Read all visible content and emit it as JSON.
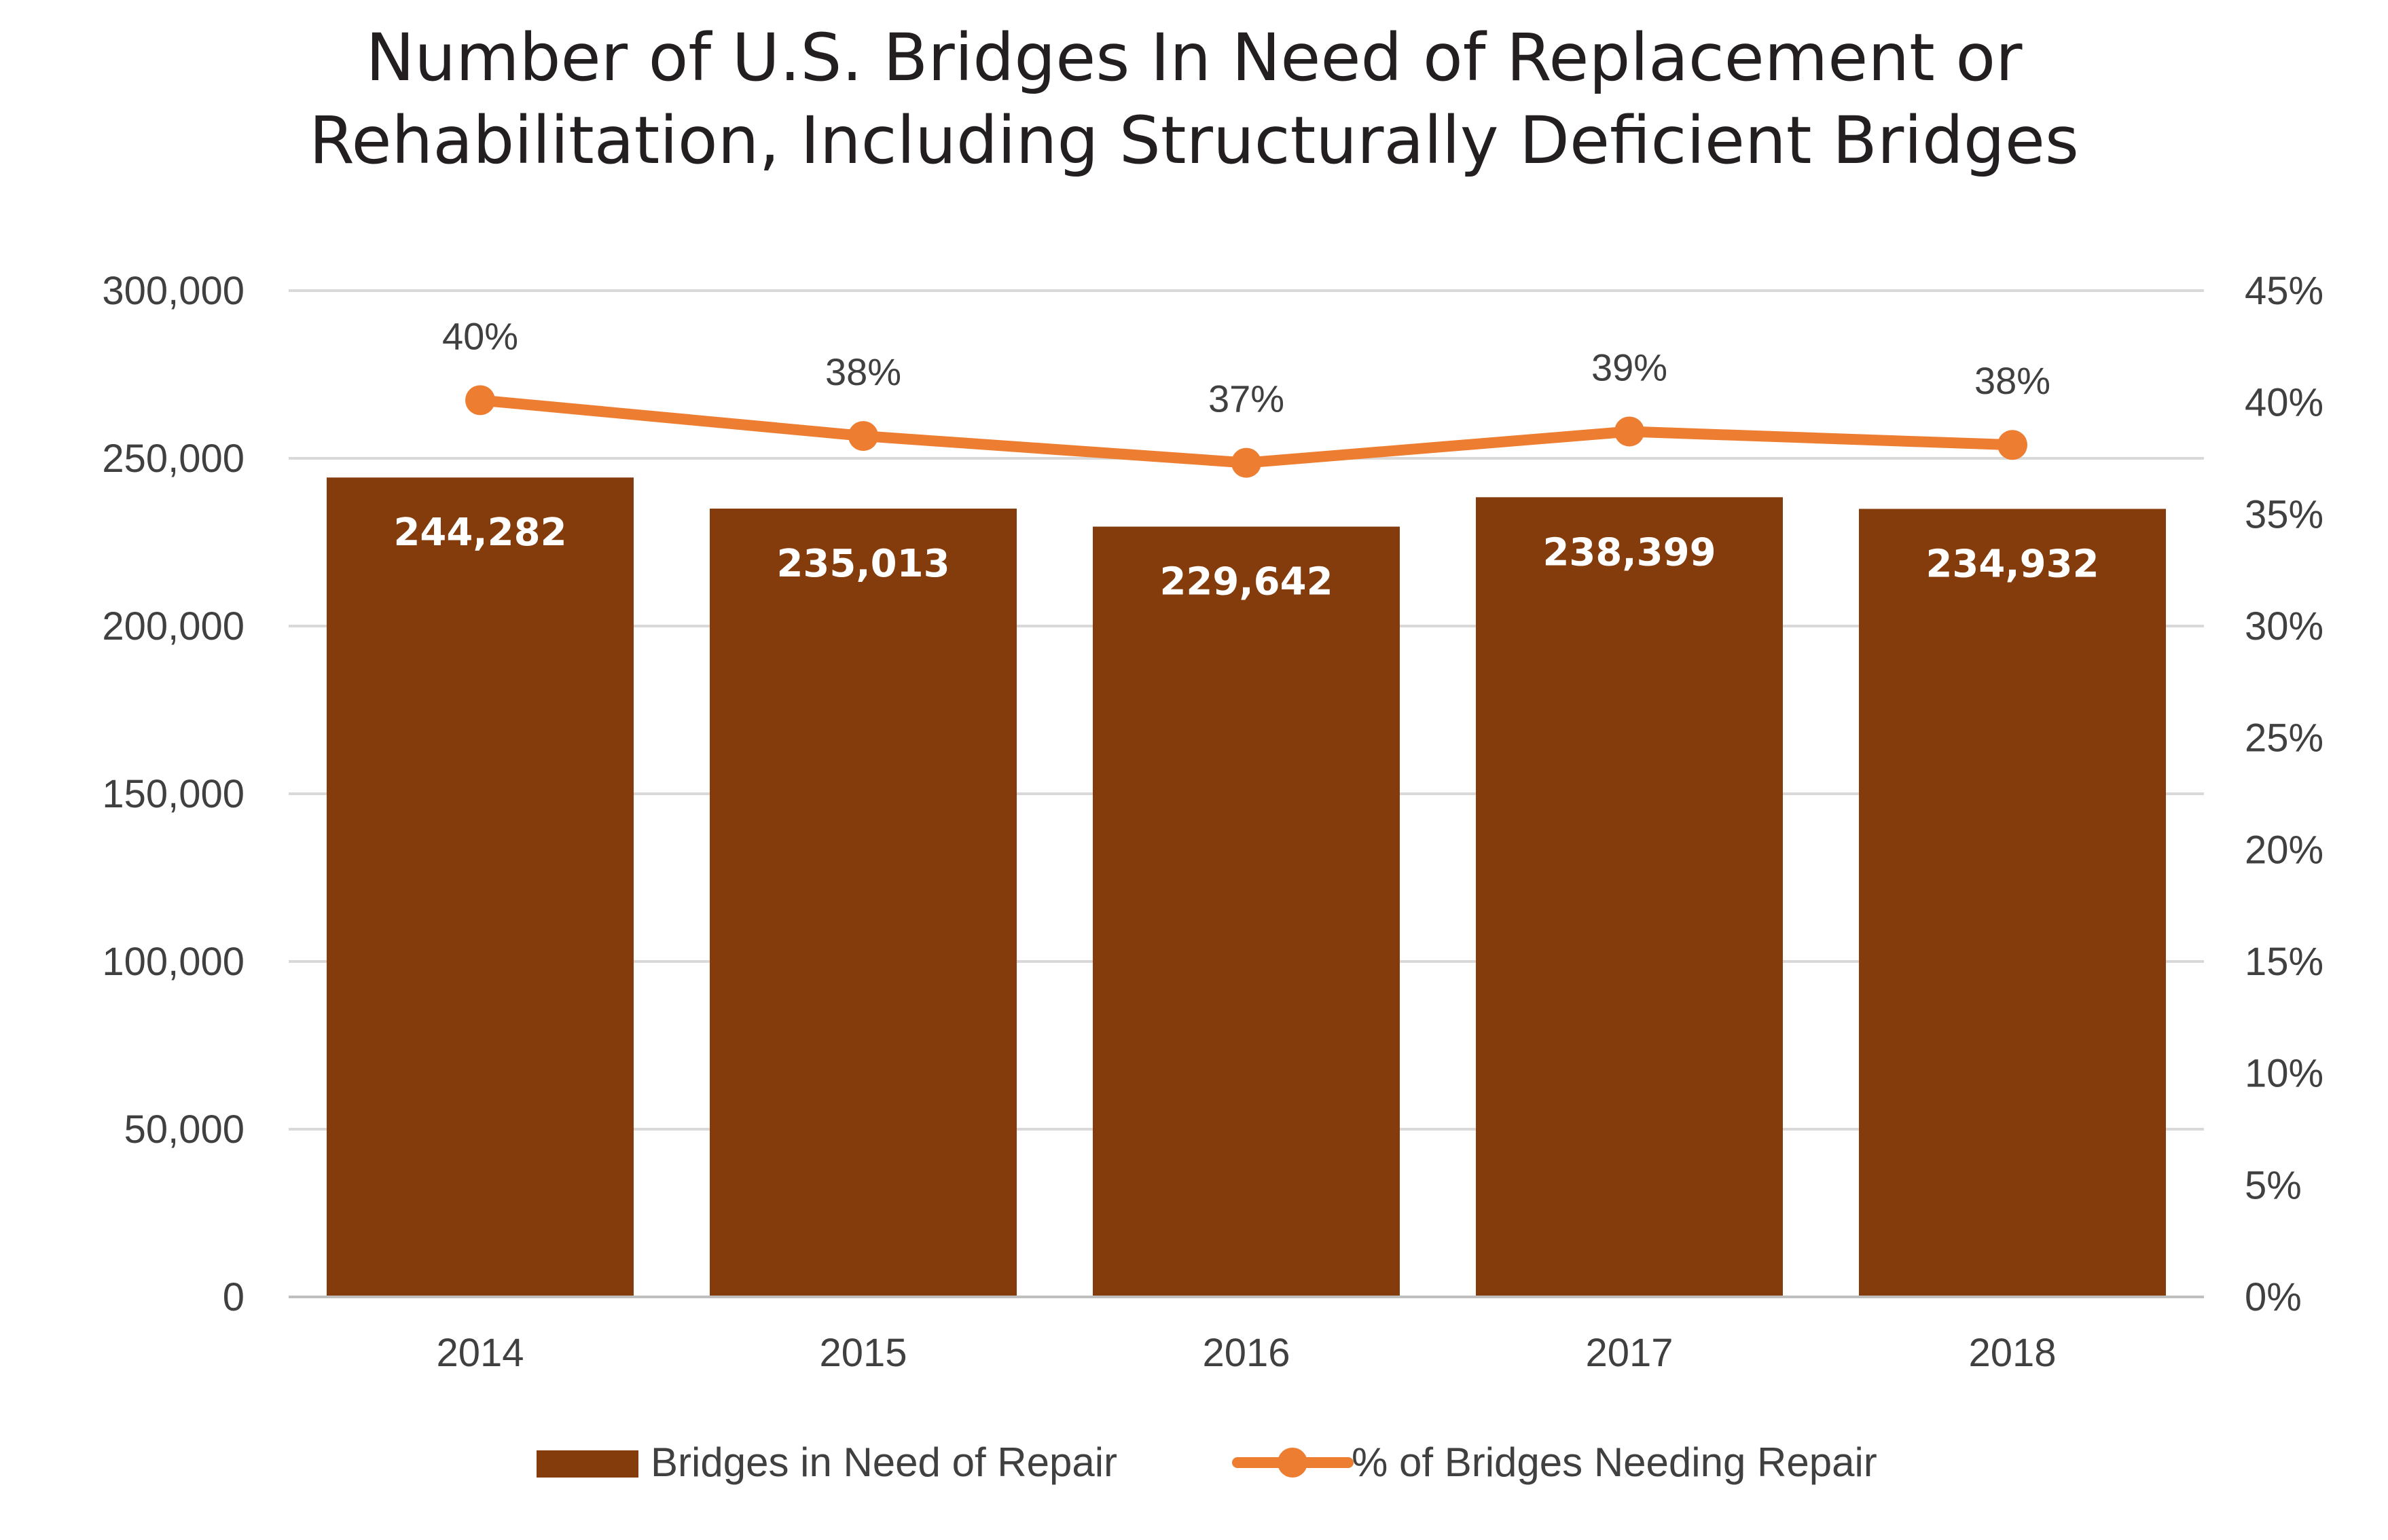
{
  "colors": {
    "bar": "#843c0c",
    "line": "#ed7d31",
    "grid": "#d9d9d9",
    "axis": "#bfbfbf",
    "text": "#404040",
    "bar_label": "#ffffff"
  },
  "chart_data": {
    "type": "bar",
    "title_lines": [
      "Number of U.S. Bridges In Need of Replacement or",
      "Rehabilitation, Including Structurally Deficient Bridges"
    ],
    "categories": [
      "2014",
      "2015",
      "2016",
      "2017",
      "2018"
    ],
    "series": [
      {
        "name": "Bridges in Need of Repair",
        "kind": "bar",
        "axis": "left",
        "values": [
          244282,
          235013,
          229642,
          238399,
          234932
        ],
        "labels": [
          "244,282",
          "235,013",
          "229,642",
          "238,399",
          "234,932"
        ]
      },
      {
        "name": "% of Bridges Needing Repair",
        "kind": "line",
        "axis": "right",
        "values": [
          40.1,
          38.5,
          37.3,
          38.7,
          38.1
        ],
        "labels": [
          "40%",
          "38%",
          "37%",
          "39%",
          "38%"
        ]
      }
    ],
    "left_axis": {
      "min": 0,
      "max": 300000,
      "ticks": [
        0,
        50000,
        100000,
        150000,
        200000,
        250000,
        300000
      ],
      "tick_labels": [
        "0",
        "50,000",
        "100,000",
        "150,000",
        "200,000",
        "250,000",
        "300,000"
      ]
    },
    "right_axis": {
      "min": 0,
      "max": 45,
      "ticks": [
        0,
        5,
        10,
        15,
        20,
        25,
        30,
        35,
        40,
        45
      ],
      "tick_labels": [
        "0%",
        "5%",
        "10%",
        "15%",
        "20%",
        "25%",
        "30%",
        "35%",
        "40%",
        "45%"
      ]
    },
    "grid": true,
    "legend_position": "bottom-center"
  }
}
